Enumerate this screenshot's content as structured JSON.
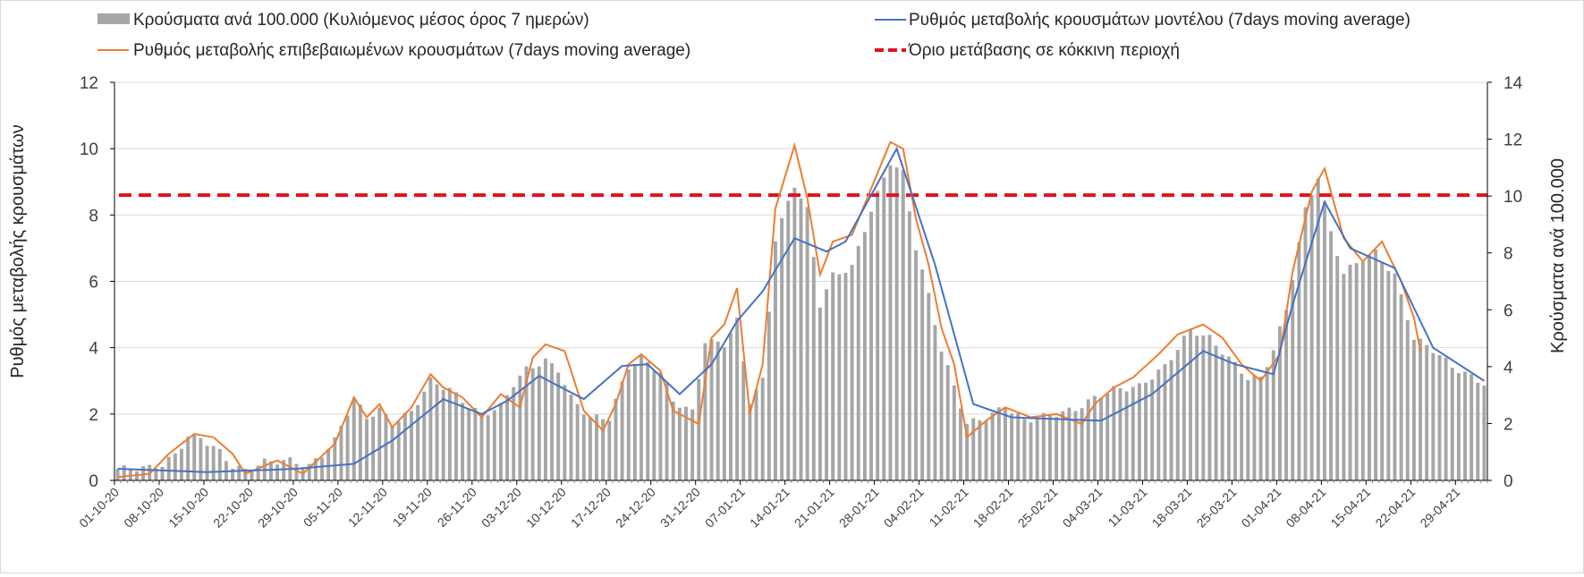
{
  "chart_data": {
    "type": "bar+line",
    "legend": {
      "bars": "Κρούσματα ανά 100.000 (Κυλιόμενος μέσος όρος 7 ημερών)",
      "model": "Ρυθμός μεταβολής κρουσμάτων μοντέλου (7days moving average)",
      "confirmed": "Ρυθμός μεταβολής επιβεβαιωμένων κρουσμάτων (7days moving average)",
      "threshold": "Όριο μετάβασης σε κόκκινη περιοχή"
    },
    "ylabel_left": "Ρυθμός μεταβολής κρουσμάτων",
    "ylabel_right": "Κρούσματα ανά 100.000",
    "ylim_left": [
      0,
      12
    ],
    "ylim_right": [
      0,
      14
    ],
    "yticks_left": [
      "0",
      "2",
      "4",
      "6",
      "8",
      "10",
      "12"
    ],
    "yticks_right": [
      "0",
      "2",
      "4",
      "6",
      "8",
      "10",
      "12",
      "14"
    ],
    "grid": true,
    "threshold_left": 8.6,
    "x_start": "2020-10-01",
    "x_end": "2021-05-03",
    "x_tick_labels": [
      "01-10-20",
      "08-10-20",
      "15-10-20",
      "22-10-20",
      "29-10-20",
      "05-11-20",
      "12-11-20",
      "19-11-20",
      "26-11-20",
      "03-12-20",
      "10-12-20",
      "17-12-20",
      "24-12-20",
      "31-12-20",
      "07-01-21",
      "14-01-21",
      "21-01-21",
      "28-01-21",
      "04-02-21",
      "11-02-21",
      "18-02-21",
      "25-02-21",
      "04-03-21",
      "11-03-21",
      "18-03-21",
      "25-03-21",
      "01-04-21",
      "08-04-21",
      "15-04-21",
      "22-04-21",
      "29-04-21"
    ],
    "bar_keypoints_right_axis": [
      [
        "2020-10-01",
        0.4
      ],
      [
        "2020-10-06",
        0.45
      ],
      [
        "2020-10-08",
        0.55
      ],
      [
        "2020-10-10",
        0.9
      ],
      [
        "2020-10-12",
        1.55
      ],
      [
        "2020-10-14",
        1.5
      ],
      [
        "2020-10-17",
        1.0
      ],
      [
        "2020-10-19",
        0.5
      ],
      [
        "2020-10-21",
        0.35
      ],
      [
        "2020-10-24",
        0.65
      ],
      [
        "2020-10-28",
        0.7
      ],
      [
        "2020-10-31",
        0.5
      ],
      [
        "2020-11-02",
        0.9
      ],
      [
        "2020-11-04",
        1.4
      ],
      [
        "2020-11-07",
        2.9
      ],
      [
        "2020-11-09",
        2.2
      ],
      [
        "2020-11-11",
        2.5
      ],
      [
        "2020-11-13",
        2.0
      ],
      [
        "2020-11-16",
        2.4
      ],
      [
        "2020-11-19",
        3.5
      ],
      [
        "2020-11-22",
        3.2
      ],
      [
        "2020-11-25",
        2.6
      ],
      [
        "2020-11-27",
        2.3
      ],
      [
        "2020-11-30",
        2.6
      ],
      [
        "2020-12-02",
        3.4
      ],
      [
        "2020-12-04",
        3.9
      ],
      [
        "2020-12-07",
        4.2
      ],
      [
        "2020-12-09",
        3.9
      ],
      [
        "2020-12-11",
        2.9
      ],
      [
        "2020-12-14",
        2.2
      ],
      [
        "2020-12-17",
        2.2
      ],
      [
        "2020-12-20",
        4.0
      ],
      [
        "2020-12-22",
        4.3
      ],
      [
        "2020-12-25",
        3.8
      ],
      [
        "2020-12-27",
        2.8
      ],
      [
        "2020-12-30",
        2.4
      ],
      [
        "2021-01-01",
        4.9
      ],
      [
        "2021-01-04",
        4.8
      ],
      [
        "2021-01-06",
        5.6
      ],
      [
        "2021-01-08",
        2.8
      ],
      [
        "2021-01-10",
        3.5
      ],
      [
        "2021-01-12",
        8.5
      ],
      [
        "2021-01-15",
        10.4
      ],
      [
        "2021-01-17",
        9.5
      ],
      [
        "2021-01-19",
        6.2
      ],
      [
        "2021-01-21",
        7.2
      ],
      [
        "2021-01-24",
        7.5
      ],
      [
        "2021-01-27",
        9.5
      ],
      [
        "2021-01-30",
        11.2
      ],
      [
        "2021-02-01",
        10.8
      ],
      [
        "2021-02-03",
        8.2
      ],
      [
        "2021-02-05",
        6.5
      ],
      [
        "2021-02-07",
        4.6
      ],
      [
        "2021-02-09",
        3.3
      ],
      [
        "2021-02-11",
        2.0
      ],
      [
        "2021-02-14",
        2.2
      ],
      [
        "2021-02-17",
        2.6
      ],
      [
        "2021-02-20",
        2.1
      ],
      [
        "2021-02-24",
        2.3
      ],
      [
        "2021-02-28",
        2.5
      ],
      [
        "2021-03-03",
        2.9
      ],
      [
        "2021-03-06",
        3.2
      ],
      [
        "2021-03-10",
        3.3
      ],
      [
        "2021-03-14",
        4.0
      ],
      [
        "2021-03-18",
        5.3
      ],
      [
        "2021-03-21",
        5.0
      ],
      [
        "2021-03-24",
        4.3
      ],
      [
        "2021-03-27",
        3.6
      ],
      [
        "2021-03-29",
        3.6
      ],
      [
        "2021-03-31",
        4.6
      ],
      [
        "2021-04-02",
        6.0
      ],
      [
        "2021-04-05",
        9.5
      ],
      [
        "2021-04-07",
        10.7
      ],
      [
        "2021-04-09",
        8.7
      ],
      [
        "2021-04-11",
        7.3
      ],
      [
        "2021-04-14",
        7.8
      ],
      [
        "2021-04-16",
        8.0
      ],
      [
        "2021-04-19",
        7.2
      ],
      [
        "2021-04-22",
        5.0
      ],
      [
        "2021-04-25",
        4.6
      ],
      [
        "2021-04-28",
        4.0
      ],
      [
        "2021-05-03",
        3.4
      ]
    ],
    "model_keypoints_left_axis": [
      [
        "2020-10-01",
        0.35
      ],
      [
        "2020-10-15",
        0.25
      ],
      [
        "2020-10-29",
        0.35
      ],
      [
        "2020-11-07",
        0.5
      ],
      [
        "2020-11-13",
        1.2
      ],
      [
        "2020-11-21",
        2.45
      ],
      [
        "2020-11-27",
        2.0
      ],
      [
        "2020-12-01",
        2.4
      ],
      [
        "2020-12-06",
        3.15
      ],
      [
        "2020-12-13",
        2.45
      ],
      [
        "2020-12-19",
        3.45
      ],
      [
        "2020-12-23",
        3.5
      ],
      [
        "2020-12-28",
        2.6
      ],
      [
        "2021-01-02",
        3.5
      ],
      [
        "2021-01-06",
        4.8
      ],
      [
        "2021-01-10",
        5.7
      ],
      [
        "2021-01-15",
        7.3
      ],
      [
        "2021-01-20",
        6.9
      ],
      [
        "2021-01-23",
        7.2
      ],
      [
        "2021-01-31",
        10.0
      ],
      [
        "2021-02-06",
        6.5
      ],
      [
        "2021-02-12",
        2.3
      ],
      [
        "2021-02-18",
        1.9
      ],
      [
        "2021-03-04",
        1.8
      ],
      [
        "2021-03-12",
        2.6
      ],
      [
        "2021-03-20",
        3.9
      ],
      [
        "2021-03-25",
        3.5
      ],
      [
        "2021-03-31",
        3.2
      ],
      [
        "2021-04-03",
        5.3
      ],
      [
        "2021-04-08",
        8.4
      ],
      [
        "2021-04-12",
        7.0
      ],
      [
        "2021-04-19",
        6.4
      ],
      [
        "2021-04-25",
        4.0
      ],
      [
        "2021-05-03",
        3.0
      ]
    ],
    "confirmed_keypoints_left_axis": [
      [
        "2020-10-01",
        0.1
      ],
      [
        "2020-10-06",
        0.2
      ],
      [
        "2020-10-09",
        0.8
      ],
      [
        "2020-10-13",
        1.4
      ],
      [
        "2020-10-16",
        1.3
      ],
      [
        "2020-10-19",
        0.8
      ],
      [
        "2020-10-21",
        0.2
      ],
      [
        "2020-10-26",
        0.6
      ],
      [
        "2020-10-30",
        0.2
      ],
      [
        "2020-11-04",
        1.1
      ],
      [
        "2020-11-07",
        2.5
      ],
      [
        "2020-11-09",
        1.9
      ],
      [
        "2020-11-11",
        2.3
      ],
      [
        "2020-11-13",
        1.6
      ],
      [
        "2020-11-16",
        2.2
      ],
      [
        "2020-11-19",
        3.2
      ],
      [
        "2020-11-21",
        2.8
      ],
      [
        "2020-11-24",
        2.5
      ],
      [
        "2020-11-27",
        1.9
      ],
      [
        "2020-11-30",
        2.6
      ],
      [
        "2020-12-03",
        2.2
      ],
      [
        "2020-12-05",
        3.7
      ],
      [
        "2020-12-07",
        4.1
      ],
      [
        "2020-12-10",
        3.9
      ],
      [
        "2020-12-13",
        2.1
      ],
      [
        "2020-12-16",
        1.5
      ],
      [
        "2020-12-18",
        2.3
      ],
      [
        "2020-12-20",
        3.5
      ],
      [
        "2020-12-22",
        3.8
      ],
      [
        "2020-12-25",
        3.3
      ],
      [
        "2020-12-27",
        2.1
      ],
      [
        "2020-12-31",
        1.7
      ],
      [
        "2021-01-02",
        4.3
      ],
      [
        "2021-01-04",
        4.7
      ],
      [
        "2021-01-06",
        5.8
      ],
      [
        "2021-01-08",
        2.0
      ],
      [
        "2021-01-10",
        3.5
      ],
      [
        "2021-01-12",
        8.2
      ],
      [
        "2021-01-15",
        10.1
      ],
      [
        "2021-01-17",
        8.5
      ],
      [
        "2021-01-19",
        6.2
      ],
      [
        "2021-01-21",
        7.2
      ],
      [
        "2021-01-24",
        7.4
      ],
      [
        "2021-01-27",
        8.8
      ],
      [
        "2021-01-30",
        10.2
      ],
      [
        "2021-02-01",
        10.0
      ],
      [
        "2021-02-03",
        7.9
      ],
      [
        "2021-02-05",
        6.5
      ],
      [
        "2021-02-07",
        4.6
      ],
      [
        "2021-02-09",
        3.5
      ],
      [
        "2021-02-11",
        1.3
      ],
      [
        "2021-02-14",
        1.8
      ],
      [
        "2021-02-17",
        2.2
      ],
      [
        "2021-02-21",
        1.9
      ],
      [
        "2021-02-25",
        2.0
      ],
      [
        "2021-03-01",
        1.7
      ],
      [
        "2021-03-03",
        2.3
      ],
      [
        "2021-03-06",
        2.8
      ],
      [
        "2021-03-09",
        3.1
      ],
      [
        "2021-03-13",
        3.8
      ],
      [
        "2021-03-16",
        4.4
      ],
      [
        "2021-03-20",
        4.7
      ],
      [
        "2021-03-23",
        4.3
      ],
      [
        "2021-03-26",
        3.5
      ],
      [
        "2021-03-29",
        3.0
      ],
      [
        "2021-04-01",
        3.8
      ],
      [
        "2021-04-03",
        6.3
      ],
      [
        "2021-04-06",
        8.7
      ],
      [
        "2021-04-08",
        9.4
      ],
      [
        "2021-04-11",
        7.3
      ],
      [
        "2021-04-14",
        6.6
      ],
      [
        "2021-04-17",
        7.2
      ],
      [
        "2021-04-20",
        6.0
      ],
      [
        "2021-04-22",
        4.9
      ],
      [
        "2021-04-23",
        3.9
      ]
    ]
  }
}
